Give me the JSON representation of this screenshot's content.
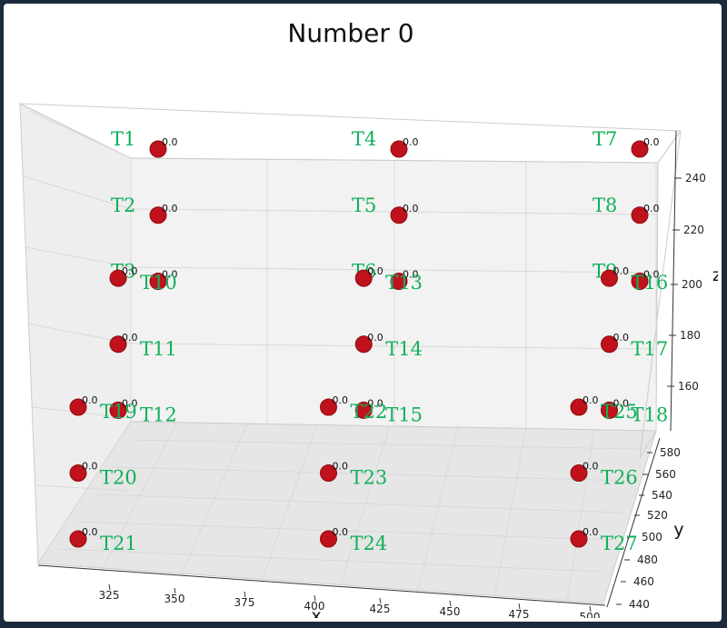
{
  "chart_data": {
    "type": "scatter",
    "title": "Number 0",
    "xlabel": "x",
    "ylabel": "y",
    "zlabel": "z",
    "x_ticks": [
      "325",
      "350",
      "375",
      "400",
      "425",
      "450",
      "475",
      "500"
    ],
    "y_ticks": [
      "440",
      "460",
      "480",
      "500",
      "520",
      "540",
      "560",
      "580"
    ],
    "z_ticks": [
      "160",
      "180",
      "200",
      "220",
      "240"
    ],
    "marker_color": "#c0121c",
    "label_color": "#12b05a",
    "points": [
      {
        "label": "T1",
        "x": 320,
        "y": 580,
        "z": 250,
        "value": "0.0"
      },
      {
        "label": "T2",
        "x": 320,
        "y": 580,
        "z": 225,
        "value": "0.0"
      },
      {
        "label": "T3",
        "x": 320,
        "y": 580,
        "z": 200,
        "value": "0.0"
      },
      {
        "label": "T4",
        "x": 410,
        "y": 580,
        "z": 250,
        "value": "0.0"
      },
      {
        "label": "T5",
        "x": 410,
        "y": 580,
        "z": 225,
        "value": "0.0"
      },
      {
        "label": "T6",
        "x": 410,
        "y": 580,
        "z": 200,
        "value": "0.0"
      },
      {
        "label": "T7",
        "x": 500,
        "y": 580,
        "z": 250,
        "value": "0.0"
      },
      {
        "label": "T8",
        "x": 500,
        "y": 580,
        "z": 225,
        "value": "0.0"
      },
      {
        "label": "T9",
        "x": 500,
        "y": 580,
        "z": 200,
        "value": "0.0"
      },
      {
        "label": "T10",
        "x": 320,
        "y": 510,
        "z": 225,
        "value": "0.0"
      },
      {
        "label": "T11",
        "x": 320,
        "y": 510,
        "z": 200,
        "value": "0.0"
      },
      {
        "label": "T12",
        "x": 320,
        "y": 510,
        "z": 175,
        "value": "0.0"
      },
      {
        "label": "T13",
        "x": 410,
        "y": 510,
        "z": 225,
        "value": "0.0"
      },
      {
        "label": "T14",
        "x": 410,
        "y": 510,
        "z": 200,
        "value": "0.0"
      },
      {
        "label": "T15",
        "x": 410,
        "y": 510,
        "z": 175,
        "value": "0.0"
      },
      {
        "label": "T16",
        "x": 500,
        "y": 510,
        "z": 225,
        "value": "0.0"
      },
      {
        "label": "T17",
        "x": 500,
        "y": 510,
        "z": 200,
        "value": "0.0"
      },
      {
        "label": "T18",
        "x": 500,
        "y": 510,
        "z": 175,
        "value": "0.0"
      },
      {
        "label": "T19",
        "x": 320,
        "y": 440,
        "z": 200,
        "value": "0.0"
      },
      {
        "label": "T20",
        "x": 320,
        "y": 440,
        "z": 175,
        "value": "0.0"
      },
      {
        "label": "T21",
        "x": 320,
        "y": 440,
        "z": 150,
        "value": "0.0"
      },
      {
        "label": "T22",
        "x": 410,
        "y": 440,
        "z": 200,
        "value": "0.0"
      },
      {
        "label": "T23",
        "x": 410,
        "y": 440,
        "z": 175,
        "value": "0.0"
      },
      {
        "label": "T24",
        "x": 410,
        "y": 440,
        "z": 150,
        "value": "0.0"
      },
      {
        "label": "T25",
        "x": 500,
        "y": 440,
        "z": 200,
        "value": "0.0"
      },
      {
        "label": "T26",
        "x": 500,
        "y": 440,
        "z": 175,
        "value": "0.0"
      },
      {
        "label": "T27",
        "x": 500,
        "y": 440,
        "z": 150,
        "value": "0.0"
      }
    ]
  }
}
